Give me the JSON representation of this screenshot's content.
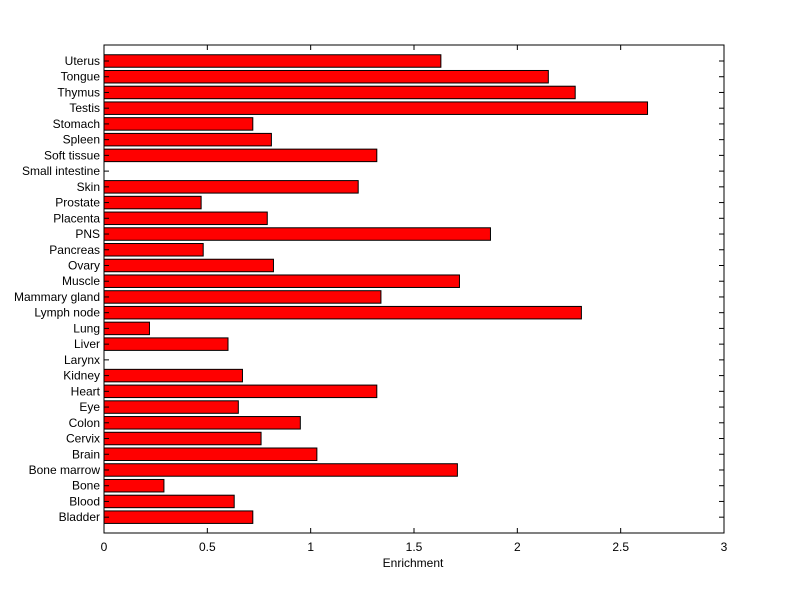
{
  "chart_data": {
    "type": "bar",
    "orientation": "horizontal",
    "title": "",
    "xlabel": "Enrichment",
    "ylabel": "",
    "xlim": [
      0,
      3
    ],
    "xticks": [
      0,
      0.5,
      1,
      1.5,
      2,
      2.5,
      3
    ],
    "xtick_labels": [
      "0",
      "0.5",
      "1",
      "1.5",
      "2",
      "2.5",
      "3"
    ],
    "grid": false,
    "bar_color": "#ff0000",
    "bar_edge_color": "#000000",
    "categories": [
      "Uterus",
      "Tongue",
      "Thymus",
      "Testis",
      "Stomach",
      "Spleen",
      "Soft tissue",
      "Small intestine",
      "Skin",
      "Prostate",
      "Placenta",
      "PNS",
      "Pancreas",
      "Ovary",
      "Muscle",
      "Mammary gland",
      "Lymph node",
      "Lung",
      "Liver",
      "Larynx",
      "Kidney",
      "Heart",
      "Eye",
      "Colon",
      "Cervix",
      "Brain",
      "Bone marrow",
      "Bone",
      "Blood",
      "Bladder"
    ],
    "values": [
      1.63,
      2.15,
      2.28,
      2.63,
      0.72,
      0.81,
      1.32,
      0,
      1.23,
      0.47,
      0.79,
      1.87,
      0.48,
      0.82,
      1.72,
      1.34,
      2.31,
      0.22,
      0.6,
      0,
      0.67,
      1.32,
      0.65,
      0.95,
      0.76,
      1.03,
      1.71,
      0.29,
      0.63,
      0.72
    ]
  }
}
